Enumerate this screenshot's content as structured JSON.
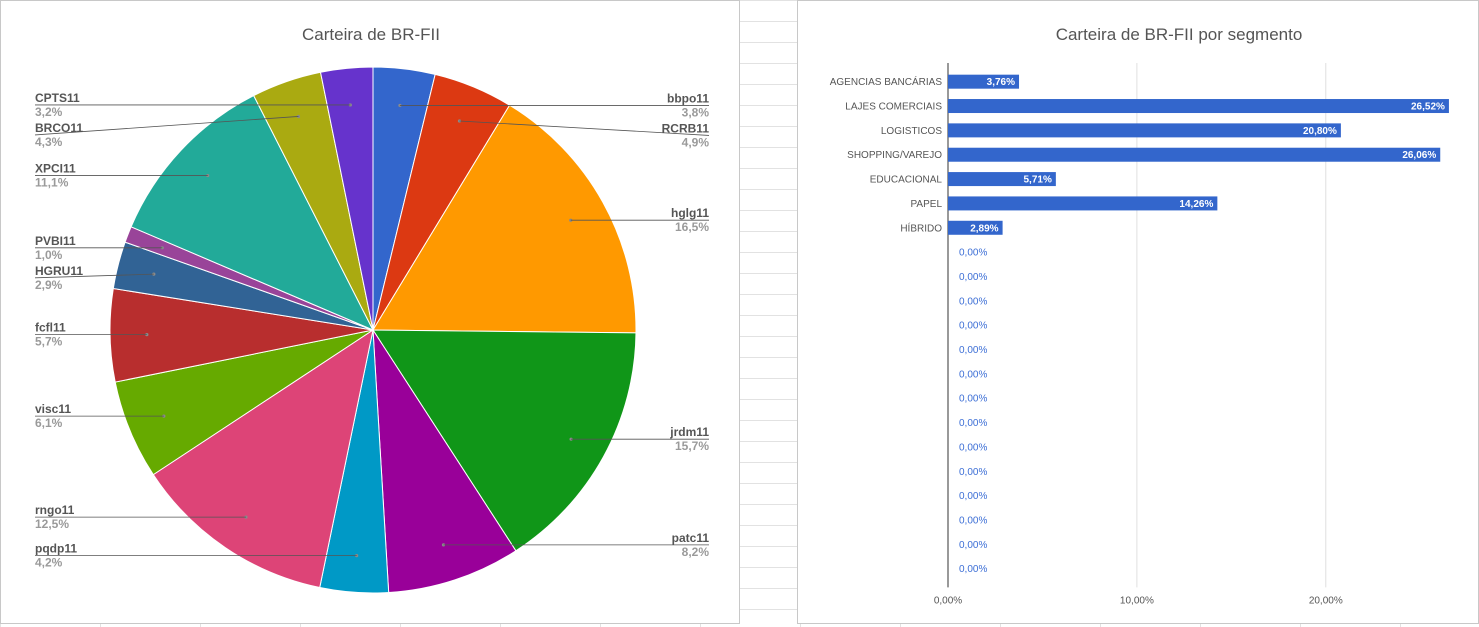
{
  "chart_data": [
    {
      "type": "pie",
      "title": "Carteira de BR-FII",
      "slices": [
        {
          "label": "bbpo11",
          "value": 3.8,
          "pct_label": "3,8%",
          "color": "#3366cc"
        },
        {
          "label": "RCRB11",
          "value": 4.9,
          "pct_label": "4,9%",
          "color": "#dc3912"
        },
        {
          "label": "hglg11",
          "value": 16.5,
          "pct_label": "16,5%",
          "color": "#ff9900"
        },
        {
          "label": "jrdm11",
          "value": 15.7,
          "pct_label": "15,7%",
          "color": "#109618"
        },
        {
          "label": "patc11",
          "value": 8.2,
          "pct_label": "8,2%",
          "color": "#990099"
        },
        {
          "label": "pqdp11",
          "value": 4.2,
          "pct_label": "4,2%",
          "color": "#0099c6"
        },
        {
          "label": "rngo11",
          "value": 12.5,
          "pct_label": "12,5%",
          "color": "#dd4477"
        },
        {
          "label": "visc11",
          "value": 6.1,
          "pct_label": "6,1%",
          "color": "#66aa00"
        },
        {
          "label": "fcfl11",
          "value": 5.7,
          "pct_label": "5,7%",
          "color": "#b82e2e"
        },
        {
          "label": "HGRU11",
          "value": 2.9,
          "pct_label": "2,9%",
          "color": "#316395"
        },
        {
          "label": "PVBI11",
          "value": 1.0,
          "pct_label": "1,0%",
          "color": "#994499"
        },
        {
          "label": "XPCI11",
          "value": 11.1,
          "pct_label": "11,1%",
          "color": "#22aa99"
        },
        {
          "label": "BRCO11",
          "value": 4.3,
          "pct_label": "4,3%",
          "color": "#aaaa11"
        },
        {
          "label": "CPTS11",
          "value": 3.2,
          "pct_label": "3,2%",
          "color": "#6633cc"
        }
      ],
      "legend": "labels-with-leader-lines"
    },
    {
      "type": "bar",
      "orientation": "horizontal",
      "title": "Carteira de BR-FII por segmento",
      "categories": [
        "AGENCIAS BANCÁRIAS",
        "LAJES COMERCIAIS",
        "LOGISTICOS",
        "SHOPPING/VAREJO",
        "EDUCACIONAL",
        "PAPEL",
        "HÍBRIDO",
        "",
        "",
        "",
        "",
        "",
        "",
        "",
        "",
        "",
        "",
        "",
        "",
        "",
        ""
      ],
      "values": [
        3.76,
        26.52,
        20.8,
        26.06,
        5.71,
        14.26,
        2.89,
        0,
        0,
        0,
        0,
        0,
        0,
        0,
        0,
        0,
        0,
        0,
        0,
        0,
        0
      ],
      "value_labels": [
        "3,76%",
        "26,52%",
        "20,80%",
        "26,06%",
        "5,71%",
        "14,26%",
        "2,89%",
        "0,00%",
        "0,00%",
        "0,00%",
        "0,00%",
        "0,00%",
        "0,00%",
        "0,00%",
        "0,00%",
        "0,00%",
        "0,00%",
        "0,00%",
        "0,00%",
        "0,00%",
        "0,00%"
      ],
      "xticks": [
        0,
        10,
        20
      ],
      "xtick_labels": [
        "0,00%",
        "10,00%",
        "20,00%"
      ],
      "xlim": [
        0,
        27
      ],
      "bar_color": "#3366cc",
      "grid": true
    }
  ]
}
